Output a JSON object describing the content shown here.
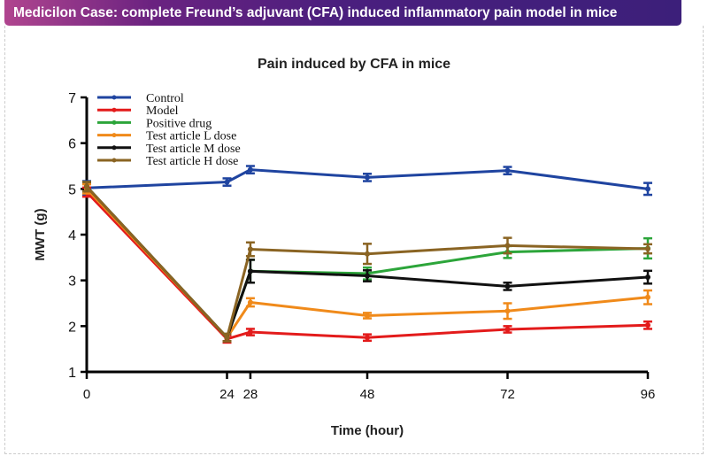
{
  "banner": {
    "title": "Medicilon Case: complete Freund’s adjuvant (CFA) induced inflammatory pain model in mice",
    "colors": [
      "#b0458f",
      "#3c1f7a"
    ]
  },
  "chart_data": {
    "type": "line",
    "title": "Pain induced by CFA in mice",
    "xlabel": "Time (hour)",
    "ylabel": "MWT (g)",
    "x": [
      0,
      24,
      28,
      48,
      72,
      96
    ],
    "xticks": [
      "0",
      "24",
      "28",
      "48",
      "72",
      "96"
    ],
    "yticks": [
      "1",
      "2",
      "3",
      "4",
      "5",
      "6",
      "7"
    ],
    "ylim": [
      1,
      7
    ],
    "xlim": [
      0,
      96
    ],
    "grid": false,
    "legend": "top-left",
    "series": [
      {
        "name": "Control",
        "color": "#1f44a0",
        "values": [
          5.02,
          5.15,
          5.42,
          5.25,
          5.4,
          5.0
        ],
        "errors": [
          0.15,
          0.08,
          0.08,
          0.08,
          0.08,
          0.13
        ]
      },
      {
        "name": "Model",
        "color": "#e31b1b",
        "values": [
          4.93,
          1.72,
          1.87,
          1.75,
          1.93,
          2.02
        ],
        "errors": [
          0.1,
          0.08,
          0.07,
          0.07,
          0.07,
          0.08
        ]
      },
      {
        "name": "Positive drug",
        "color": "#2ca53a",
        "values": [
          5.05,
          1.75,
          3.2,
          3.15,
          3.62,
          3.7
        ],
        "errors": [
          0.1,
          0.08,
          0.25,
          0.13,
          0.13,
          0.22
        ]
      },
      {
        "name": "Test article L dose",
        "color": "#f08a1a",
        "values": [
          5.0,
          1.75,
          2.52,
          2.23,
          2.33,
          2.63
        ],
        "errors": [
          0.1,
          0.08,
          0.09,
          0.06,
          0.17,
          0.15
        ]
      },
      {
        "name": "Test article M dose",
        "color": "#111111",
        "values": [
          5.05,
          1.75,
          3.2,
          3.1,
          2.87,
          3.07
        ],
        "errors": [
          0.1,
          0.08,
          0.25,
          0.12,
          0.08,
          0.14
        ]
      },
      {
        "name": "Test article H dose",
        "color": "#8a6423",
        "values": [
          5.05,
          1.75,
          3.68,
          3.58,
          3.76,
          3.69
        ],
        "errors": [
          0.1,
          0.08,
          0.15,
          0.22,
          0.17,
          0.1
        ]
      }
    ]
  }
}
